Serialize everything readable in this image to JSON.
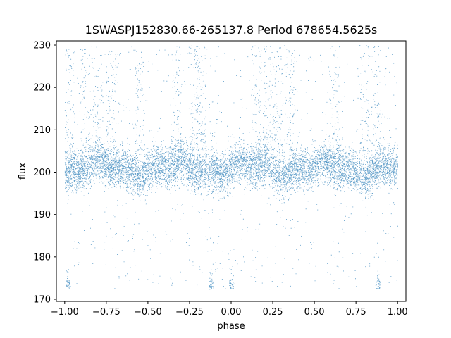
{
  "chart_data": {
    "type": "scatter",
    "title": "1SWASPJ152830.66-265137.8 Period 678654.5625s",
    "xlabel": "phase",
    "ylabel": "flux",
    "xlim": [
      -1.05,
      1.05
    ],
    "ylim": [
      169.5,
      231
    ],
    "xticks": [
      -1.0,
      -0.75,
      -0.5,
      -0.25,
      0.0,
      0.25,
      0.5,
      0.75,
      1.0
    ],
    "xtick_labels": [
      "−1.00",
      "−0.75",
      "−0.50",
      "−0.25",
      "0.00",
      "0.25",
      "0.50",
      "0.75",
      "1.00"
    ],
    "yticks": [
      170,
      180,
      190,
      200,
      210,
      220,
      230
    ],
    "ytick_labels": [
      "170",
      "180",
      "190",
      "200",
      "210",
      "220",
      "230"
    ],
    "grid": false,
    "marker_color": "#1f77b4",
    "series": [
      {
        "name": "",
        "x_range": [
          -1.0,
          1.0
        ],
        "baseline_flux": 201,
        "core_spread": 4,
        "max_flux": 230,
        "min_flux": 172.5,
        "bright_excursion_phases": [
          -0.97,
          -0.88,
          -0.8,
          -0.72,
          -0.55,
          -0.33,
          -0.22,
          -0.18,
          0.15,
          0.22,
          0.28,
          0.35,
          0.62,
          0.8,
          0.87
        ],
        "faint_clump_phases": [
          -0.98,
          -0.12,
          0.0,
          0.88
        ],
        "faint_clump_flux": 173.5
      }
    ]
  }
}
